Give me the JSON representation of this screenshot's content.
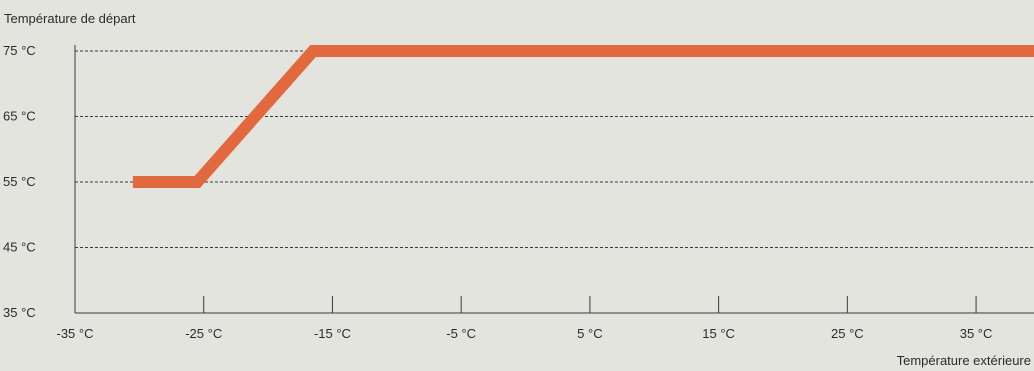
{
  "chart_data": {
    "type": "line",
    "title": "",
    "ylabel": "Température de départ",
    "xlabel": "Température extérieure",
    "x_ticks": [
      {
        "value": -35,
        "label": "-35 °C"
      },
      {
        "value": -25,
        "label": "-25 °C"
      },
      {
        "value": -15,
        "label": "-15 °C"
      },
      {
        "value": -5,
        "label": "-5 °C"
      },
      {
        "value": 5,
        "label": "5 °C"
      },
      {
        "value": 15,
        "label": "15 °C"
      },
      {
        "value": 25,
        "label": "25 °C"
      },
      {
        "value": 35,
        "label": "35 °C"
      }
    ],
    "y_ticks": [
      {
        "value": 75,
        "label": "75 °C"
      },
      {
        "value": 65,
        "label": "65 °C"
      },
      {
        "value": 55,
        "label": "55 °C"
      },
      {
        "value": 45,
        "label": "45 °C"
      },
      {
        "value": 35,
        "label": "35 °C"
      }
    ],
    "xlim": [
      -35,
      39.5
    ],
    "ylim": [
      35,
      75
    ],
    "grid": "horizontal dashed",
    "series": [
      {
        "color": "#e2683e",
        "points": [
          {
            "x": -30.5,
            "y": 55
          },
          {
            "x": -25.5,
            "y": 55
          },
          {
            "x": -16.5,
            "y": 75
          },
          {
            "x": 39.5,
            "y": 75
          }
        ]
      }
    ],
    "colors": {
      "background": "#e3e4de",
      "line": "#e2683e",
      "axis": "#3a3a3a",
      "text": "#2b2b2b"
    }
  }
}
